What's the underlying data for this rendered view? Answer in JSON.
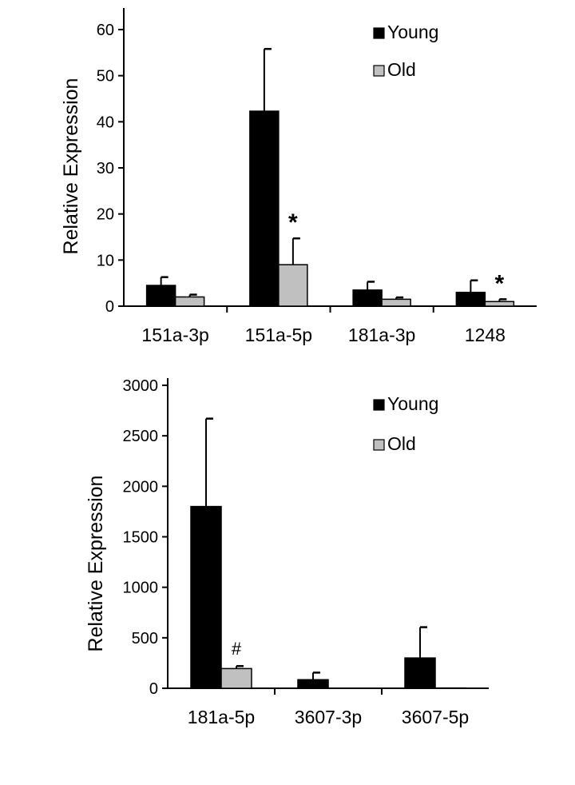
{
  "chart_data": [
    {
      "type": "bar",
      "ylabel": "Relative Expression",
      "ylim": [
        0,
        60
      ],
      "yticks": [
        0,
        10,
        20,
        30,
        40,
        50,
        60
      ],
      "ytick_labels": [
        "0",
        "10",
        "20",
        "30",
        "40",
        "50",
        "60"
      ],
      "categories": [
        "151a-3p",
        "151a-5p",
        "181a-3p",
        "1248"
      ],
      "series": [
        {
          "name": "Young",
          "color": "#000000",
          "values": [
            4.5,
            42.3,
            3.5,
            3.0
          ],
          "errors": [
            1.8,
            13.5,
            1.8,
            2.6
          ]
        },
        {
          "name": "Old",
          "color": "#c0c0c0",
          "values": [
            2.0,
            9.0,
            1.5,
            1.0
          ],
          "errors": [
            0.5,
            5.7,
            0.4,
            0.5
          ]
        }
      ],
      "annotations": [
        {
          "text": "*",
          "category": "151a-5p",
          "series": "Old"
        },
        {
          "text": "*",
          "category": "1248",
          "series": "Old"
        }
      ],
      "legend": "top-right"
    },
    {
      "type": "bar",
      "ylabel": "Relative Expression",
      "ylim": [
        0,
        3000
      ],
      "yticks": [
        0,
        500,
        1000,
        1500,
        2000,
        2500,
        3000
      ],
      "ytick_labels": [
        "0",
        "500",
        "1000",
        "1500",
        "2000",
        "2500",
        "3000"
      ],
      "categories": [
        "181a-5p",
        "3607-3p",
        "3607-5p"
      ],
      "series": [
        {
          "name": "Young",
          "color": "#000000",
          "values": [
            1800,
            85,
            300
          ],
          "errors": [
            870,
            70,
            305
          ]
        },
        {
          "name": "Old",
          "color": "#c0c0c0",
          "values": [
            195,
            2,
            3
          ],
          "errors": [
            25,
            0,
            0
          ]
        }
      ],
      "annotations": [
        {
          "text": "#",
          "category": "181a-5p",
          "series": "Old"
        }
      ],
      "legend": "top-right"
    }
  ]
}
